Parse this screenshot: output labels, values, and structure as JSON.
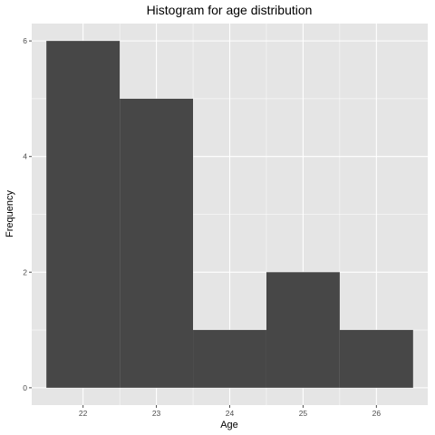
{
  "chart_data": {
    "type": "bar",
    "title": "Histogram for age distribution",
    "xlabel": "Age",
    "ylabel": "Frequency",
    "bins": [
      {
        "center": 22,
        "start": 21.5,
        "end": 22.5,
        "count": 6
      },
      {
        "center": 23,
        "start": 22.5,
        "end": 23.5,
        "count": 5
      },
      {
        "center": 24,
        "start": 23.5,
        "end": 24.5,
        "count": 1
      },
      {
        "center": 25,
        "start": 24.5,
        "end": 25.5,
        "count": 2
      },
      {
        "center": 26,
        "start": 25.5,
        "end": 26.5,
        "count": 1
      }
    ],
    "xticks": [
      22,
      23,
      24,
      25,
      26
    ],
    "yticks": [
      0,
      2,
      4,
      6
    ],
    "xlim": [
      21.3,
      26.7
    ],
    "ylim": [
      -0.3,
      6.3
    ],
    "grid": true,
    "colors": {
      "panel": "#e5e5e5",
      "grid": "#ffffff",
      "bar": "#474747",
      "tick": "#4d4d4d"
    }
  }
}
